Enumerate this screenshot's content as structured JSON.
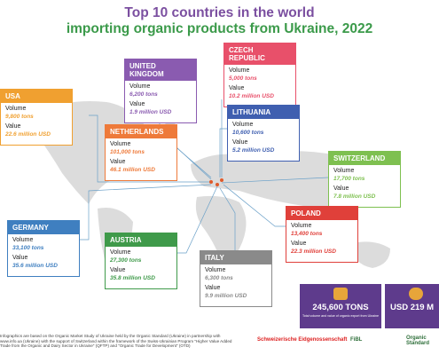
{
  "header": {
    "title_line_1": "Top 10 countries in the world",
    "title_line_2": "importing organic products from Ukraine, 2022"
  },
  "labels": {
    "volume": "Volume",
    "value": "Value"
  },
  "countries": [
    {
      "name": "USA",
      "color": "#f0a030",
      "volume": "9,800 tons",
      "value": "22.6 million USD"
    },
    {
      "name": "UNITED KINGDOM",
      "color": "#8a5bb0",
      "volume": "6,200 tons",
      "value": "1.9 million USD"
    },
    {
      "name": "CZECH REPUBLIC",
      "color": "#e8506a",
      "volume": "5,000 tons",
      "value": "10.2 million USD"
    },
    {
      "name": "NETHERLANDS",
      "color": "#ee7a3a",
      "volume": "101,000 tons",
      "value": "46.1 million USD"
    },
    {
      "name": "LITHUANIA",
      "color": "#3f5fb0",
      "volume": "10,600 tons",
      "value": "5.2 million USD"
    },
    {
      "name": "SWITZERLAND",
      "color": "#7ec050",
      "volume": "17,700 tons",
      "value": "7.8 million USD"
    },
    {
      "name": "GERMANY",
      "color": "#3f7fc0",
      "volume": "33,100 tons",
      "value": "35.6 million USD"
    },
    {
      "name": "AUSTRIA",
      "color": "#3f9a4a",
      "volume": "27,300 tons",
      "value": "35.8 million USD"
    },
    {
      "name": "POLAND",
      "color": "#e0403a",
      "volume": "13,400 tons",
      "value": "22.3 million USD"
    },
    {
      "name": "ITALY",
      "color": "#8a8a8a",
      "volume": "6,300 tons",
      "value": "9.9 million USD"
    }
  ],
  "totals": {
    "volume": "245,600 TONS",
    "value": "USD 219 M",
    "caption": "Total volume and value of organic export from Ukraine"
  },
  "footer": {
    "note": "Infographics are based on the Organic Market Study of Ukraine held by the Organic Standard (Ukraine) in partnership with www.info.ua (Ukraine) with the support of Switzerland within the framework of the Swiss-Ukrainian Program \"Higher Value Added Trade from the Organic and Dairy Sector in Ukraine\" (QFTP) and \"Organic Trade for Development\" (OTD)",
    "logos": [
      "Schweizerische Eidgenossenschaft",
      "FiBL",
      "Organic Standard"
    ]
  }
}
